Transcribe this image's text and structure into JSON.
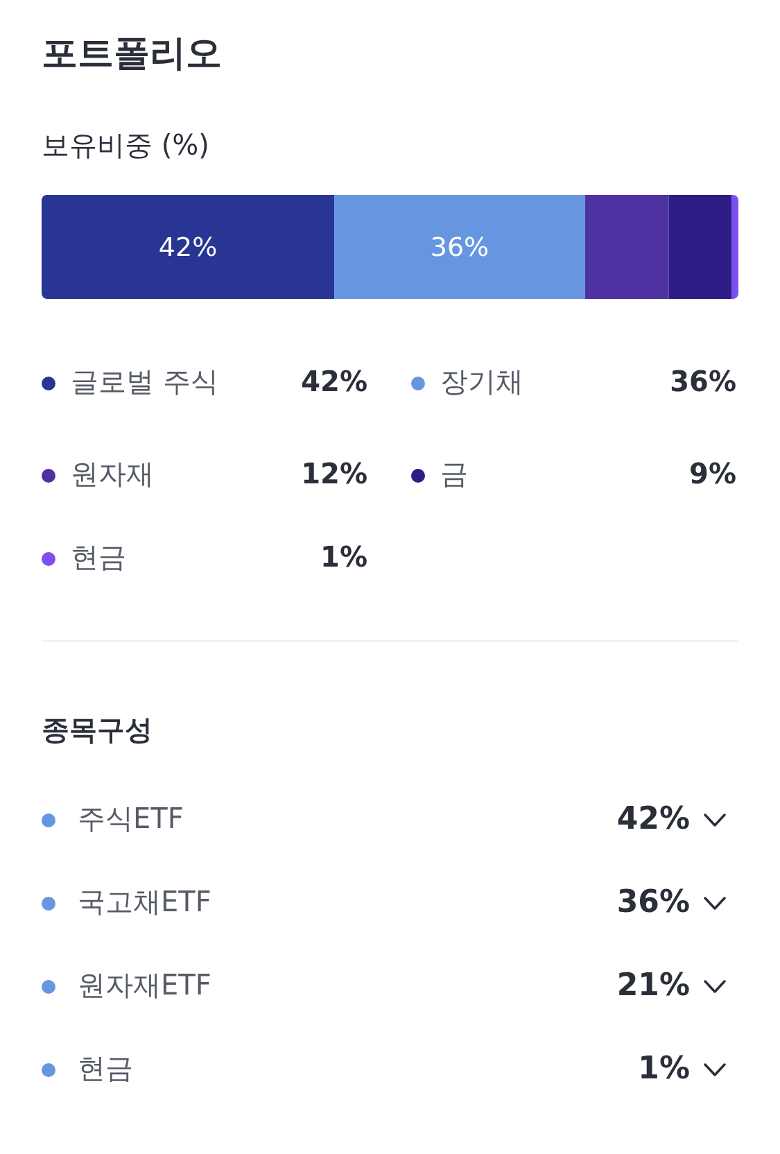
{
  "chart_data": [
    {
      "type": "bar",
      "title": "포트폴리오",
      "subtitle": "보유비중 (%)",
      "orientation": "horizontal",
      "stacked": true,
      "legend": "bottom",
      "categories": [
        null
      ],
      "series": [
        {
          "name": "글로벌 주식",
          "color": "#283593",
          "values": [
            42
          ],
          "value_labels": [
            "42%"
          ]
        },
        {
          "name": "장기채",
          "color": "#6796e0",
          "values": [
            36
          ],
          "value_labels": [
            "36%"
          ]
        },
        {
          "name": "원자재",
          "color": "#4e31a0",
          "values": [
            12
          ],
          "value_labels": [
            null
          ]
        },
        {
          "name": "금",
          "color": "#2e1c87",
          "values": [
            9
          ],
          "value_labels": [
            null
          ]
        },
        {
          "name": "현금",
          "color": "#7b4ff0",
          "values": [
            1
          ],
          "value_labels": [
            null
          ]
        }
      ],
      "annotations": [
        "42%",
        "36%",
        "12%",
        "9%",
        "1%"
      ]
    },
    {
      "type": "other",
      "title": "종목구성",
      "categories": [
        "주식ETF",
        "국고채ETF",
        "원자재ETF",
        "현금"
      ],
      "value_labels": [
        "42%",
        "36%",
        "21%",
        "1%"
      ],
      "colors": [
        "#6796e0",
        "#6796e0",
        "#6796e0",
        "#6796e0"
      ]
    }
  ]
}
